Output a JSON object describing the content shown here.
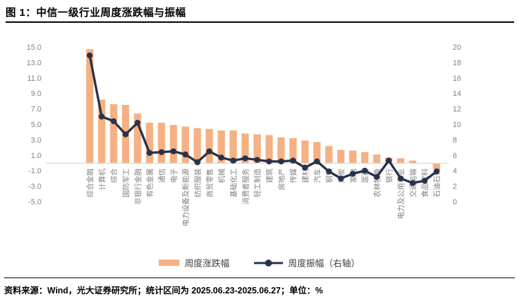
{
  "header": {
    "title": "图 1：中信一级行业周度涨跌幅与振幅"
  },
  "footer": {
    "text": "资料来源：Wind，光大证券研究所；统计区间为 2025.06.23-2025.06.27；单位：%"
  },
  "legend": [
    {
      "label": "周度涨跌幅",
      "type": "bar"
    },
    {
      "label": "周度振幅（右轴）",
      "type": "line"
    }
  ],
  "colors": {
    "bar": "#F4B183",
    "line": "#28334A",
    "axis_text": "#808080",
    "zero_line": "#D9D9D9",
    "title_text": "#000000"
  },
  "chart_data": {
    "type": "bar",
    "title": "中信一级行业周度涨跌幅与振幅",
    "xlabel": "",
    "ylabel": "",
    "unit": "%",
    "categories": [
      "综合金融",
      "计算机",
      "综合",
      "国防军工",
      "非银行金融",
      "有色金属",
      "通信",
      "电子",
      "电力设备及新能源",
      "纺织服装",
      "商贸零售",
      "机械",
      "基础化工",
      "消费者服务",
      "轻工制造",
      "建筑",
      "房地产",
      "传媒",
      "建材",
      "汽车",
      "钢铁",
      "煤炭",
      "家电",
      "医药",
      "农林牧渔",
      "银行",
      "电力及公用事业",
      "交通运输",
      "食品饮料",
      "石油石化"
    ],
    "series": [
      {
        "name": "周度涨跌幅",
        "type": "bar",
        "axis": "left",
        "values": [
          14.7,
          8.2,
          7.6,
          7.5,
          6.4,
          5.2,
          5.2,
          4.9,
          4.7,
          4.5,
          4.4,
          4.2,
          4.2,
          3.8,
          3.7,
          3.6,
          3.3,
          3.2,
          2.9,
          2.7,
          2.2,
          1.7,
          1.6,
          1.4,
          1.1,
          0.7,
          0.6,
          0.3,
          0.0,
          -0.8
        ]
      },
      {
        "name": "周度振幅（右轴）",
        "type": "line",
        "axis": "right",
        "values": [
          18.9,
          11.0,
          10.4,
          8.7,
          10.2,
          6.3,
          6.4,
          6.5,
          6.1,
          5.1,
          6.5,
          5.7,
          5.3,
          5.6,
          5.4,
          5.2,
          5.2,
          5.3,
          4.4,
          5.2,
          3.9,
          3.0,
          3.6,
          4.0,
          3.2,
          5.3,
          3.0,
          2.4,
          2.7,
          3.9
        ]
      }
    ],
    "left_axis": {
      "min": -5,
      "max": 15,
      "step": 2,
      "tick_format": "one_decimal"
    },
    "right_axis": {
      "min": 0,
      "max": 20,
      "step": 2,
      "tick_format": "integer"
    },
    "grid": false,
    "legend_position": "bottom"
  }
}
